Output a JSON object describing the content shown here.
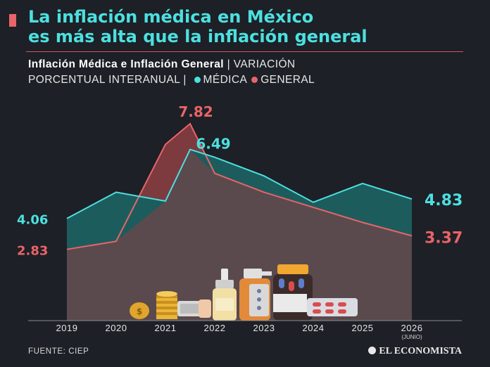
{
  "headline": {
    "line1": "La inflación médica en México",
    "line2": "es más alta que la inflación general"
  },
  "subtitle": {
    "bold": "Inflación Médica e Inflación General",
    "rest1": " | VARIACIÓN",
    "rest2": "PORCENTUAL INTERANUAL | ",
    "legend_medica": "MÉDICA",
    "legend_general": "GENERAL"
  },
  "colors": {
    "medica": "#4ce0e0",
    "general": "#e86468",
    "medica_fill": "#1d5c5d",
    "general_fill": "#7d3a3f",
    "background": "#1d2026",
    "accent": "#e86468"
  },
  "chart_data": {
    "type": "area",
    "x": [
      "2019",
      "2020",
      "2021",
      "2022",
      "2023",
      "2024",
      "2025",
      "2026"
    ],
    "x_sublabels": [
      "",
      "",
      "",
      "",
      "",
      "",
      "",
      "(JUNIO)"
    ],
    "ylim": [
      0,
      9
    ],
    "grid": false,
    "legend": "top",
    "series": [
      {
        "name": "MÉDICA",
        "x": [
          2019,
          2020,
          2021,
          2021.5,
          2022,
          2023,
          2024,
          2025,
          2026
        ],
        "values": [
          4.06,
          5.1,
          4.75,
          6.8,
          6.49,
          5.75,
          4.7,
          5.45,
          4.83
        ]
      },
      {
        "name": "GENERAL",
        "x": [
          2019,
          2020,
          2021,
          2021.5,
          2022,
          2023,
          2024,
          2025,
          2026
        ],
        "values": [
          2.83,
          3.15,
          7.0,
          7.82,
          5.85,
          5.1,
          4.5,
          3.9,
          3.37
        ]
      }
    ],
    "annotations": [
      "4.06",
      "2.83",
      "7.82",
      "6.49",
      "4.83",
      "3.37"
    ]
  },
  "source": "FUENTE: CIEP",
  "publisher": "EL ECONOMISTA"
}
